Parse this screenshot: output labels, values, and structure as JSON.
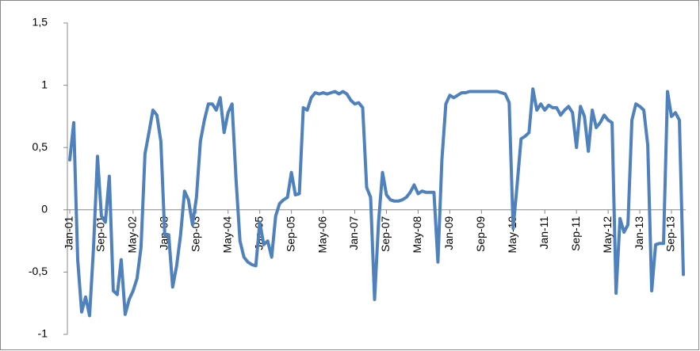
{
  "chart_data": {
    "type": "line",
    "categories": [
      "Jan-01",
      null,
      null,
      null,
      null,
      null,
      null,
      null,
      "Sep-01",
      null,
      null,
      null,
      null,
      null,
      null,
      null,
      "May-02",
      null,
      null,
      null,
      null,
      null,
      null,
      null,
      "Jan-03",
      null,
      null,
      null,
      null,
      null,
      null,
      null,
      "Sep-03",
      null,
      null,
      null,
      null,
      null,
      null,
      null,
      "May-04",
      null,
      null,
      null,
      null,
      null,
      null,
      null,
      "Jan-05",
      null,
      null,
      null,
      null,
      null,
      null,
      null,
      "Sep-05",
      null,
      null,
      null,
      null,
      null,
      null,
      null,
      "May-06",
      null,
      null,
      null,
      null,
      null,
      null,
      null,
      "Jan-07",
      null,
      null,
      null,
      null,
      null,
      null,
      null,
      "Sep-07",
      null,
      null,
      null,
      null,
      null,
      null,
      null,
      "May-08",
      null,
      null,
      null,
      null,
      null,
      null,
      null,
      "Jan-09",
      null,
      null,
      null,
      null,
      null,
      null,
      null,
      "Sep-09",
      null,
      null,
      null,
      null,
      null,
      null,
      null,
      "May-10",
      null,
      null,
      null,
      null,
      null,
      null,
      null,
      "Jan-11",
      null,
      null,
      null,
      null,
      null,
      null,
      null,
      "Sep-11",
      null,
      null,
      null,
      null,
      null,
      null,
      null,
      "May-12",
      null,
      null,
      null,
      null,
      null,
      null,
      null,
      "Jan-13",
      null,
      null,
      null,
      null,
      null,
      null,
      null,
      "Sep-13",
      null,
      null,
      null
    ],
    "values": [
      0.4,
      0.7,
      -0.4,
      -0.82,
      -0.7,
      -0.85,
      -0.3,
      0.43,
      -0.05,
      -0.1,
      0.27,
      -0.65,
      -0.68,
      -0.4,
      -0.84,
      -0.72,
      -0.65,
      -0.55,
      -0.3,
      0.45,
      0.62,
      0.8,
      0.76,
      0.55,
      -0.2,
      -0.2,
      -0.62,
      -0.45,
      -0.2,
      0.15,
      0.08,
      -0.12,
      0.1,
      0.55,
      0.72,
      0.85,
      0.85,
      0.8,
      0.9,
      0.62,
      0.78,
      0.85,
      0.25,
      -0.25,
      -0.38,
      -0.42,
      -0.44,
      -0.45,
      -0.1,
      -0.28,
      -0.25,
      -0.38,
      -0.05,
      0.05,
      0.08,
      0.1,
      0.3,
      0.12,
      0.13,
      0.82,
      0.8,
      0.9,
      0.94,
      0.93,
      0.94,
      0.93,
      0.94,
      0.95,
      0.93,
      0.95,
      0.93,
      0.88,
      0.85,
      0.86,
      0.82,
      0.18,
      0.1,
      -0.72,
      -0.1,
      0.3,
      0.12,
      0.08,
      0.07,
      0.07,
      0.08,
      0.1,
      0.14,
      0.2,
      0.13,
      0.15,
      0.14,
      0.14,
      0.14,
      -0.42,
      0.4,
      0.85,
      0.92,
      0.9,
      0.92,
      0.94,
      0.94,
      0.95,
      0.95,
      0.95,
      0.95,
      0.95,
      0.95,
      0.95,
      0.95,
      0.94,
      0.93,
      0.86,
      -0.15,
      0.2,
      0.57,
      0.59,
      0.62,
      0.97,
      0.8,
      0.85,
      0.8,
      0.84,
      0.82,
      0.82,
      0.76,
      0.8,
      0.83,
      0.78,
      0.5,
      0.83,
      0.75,
      0.47,
      0.8,
      0.66,
      0.7,
      0.76,
      0.72,
      0.7,
      -0.67,
      -0.07,
      -0.18,
      -0.12,
      0.72,
      0.85,
      0.83,
      0.8,
      0.52,
      -0.65,
      -0.28,
      -0.27,
      -0.27,
      0.95,
      0.75,
      0.78,
      0.72,
      -0.52
    ],
    "color": "#4f81bd",
    "ylim": [
      -1,
      1.5
    ],
    "yticks": [
      {
        "value": 1.5,
        "label": "1,5"
      },
      1,
      {
        "value": 0.5,
        "label": "0,5"
      },
      0,
      {
        "value": -0.5,
        "label": "-0,5"
      },
      -1
    ],
    "grid": false
  }
}
